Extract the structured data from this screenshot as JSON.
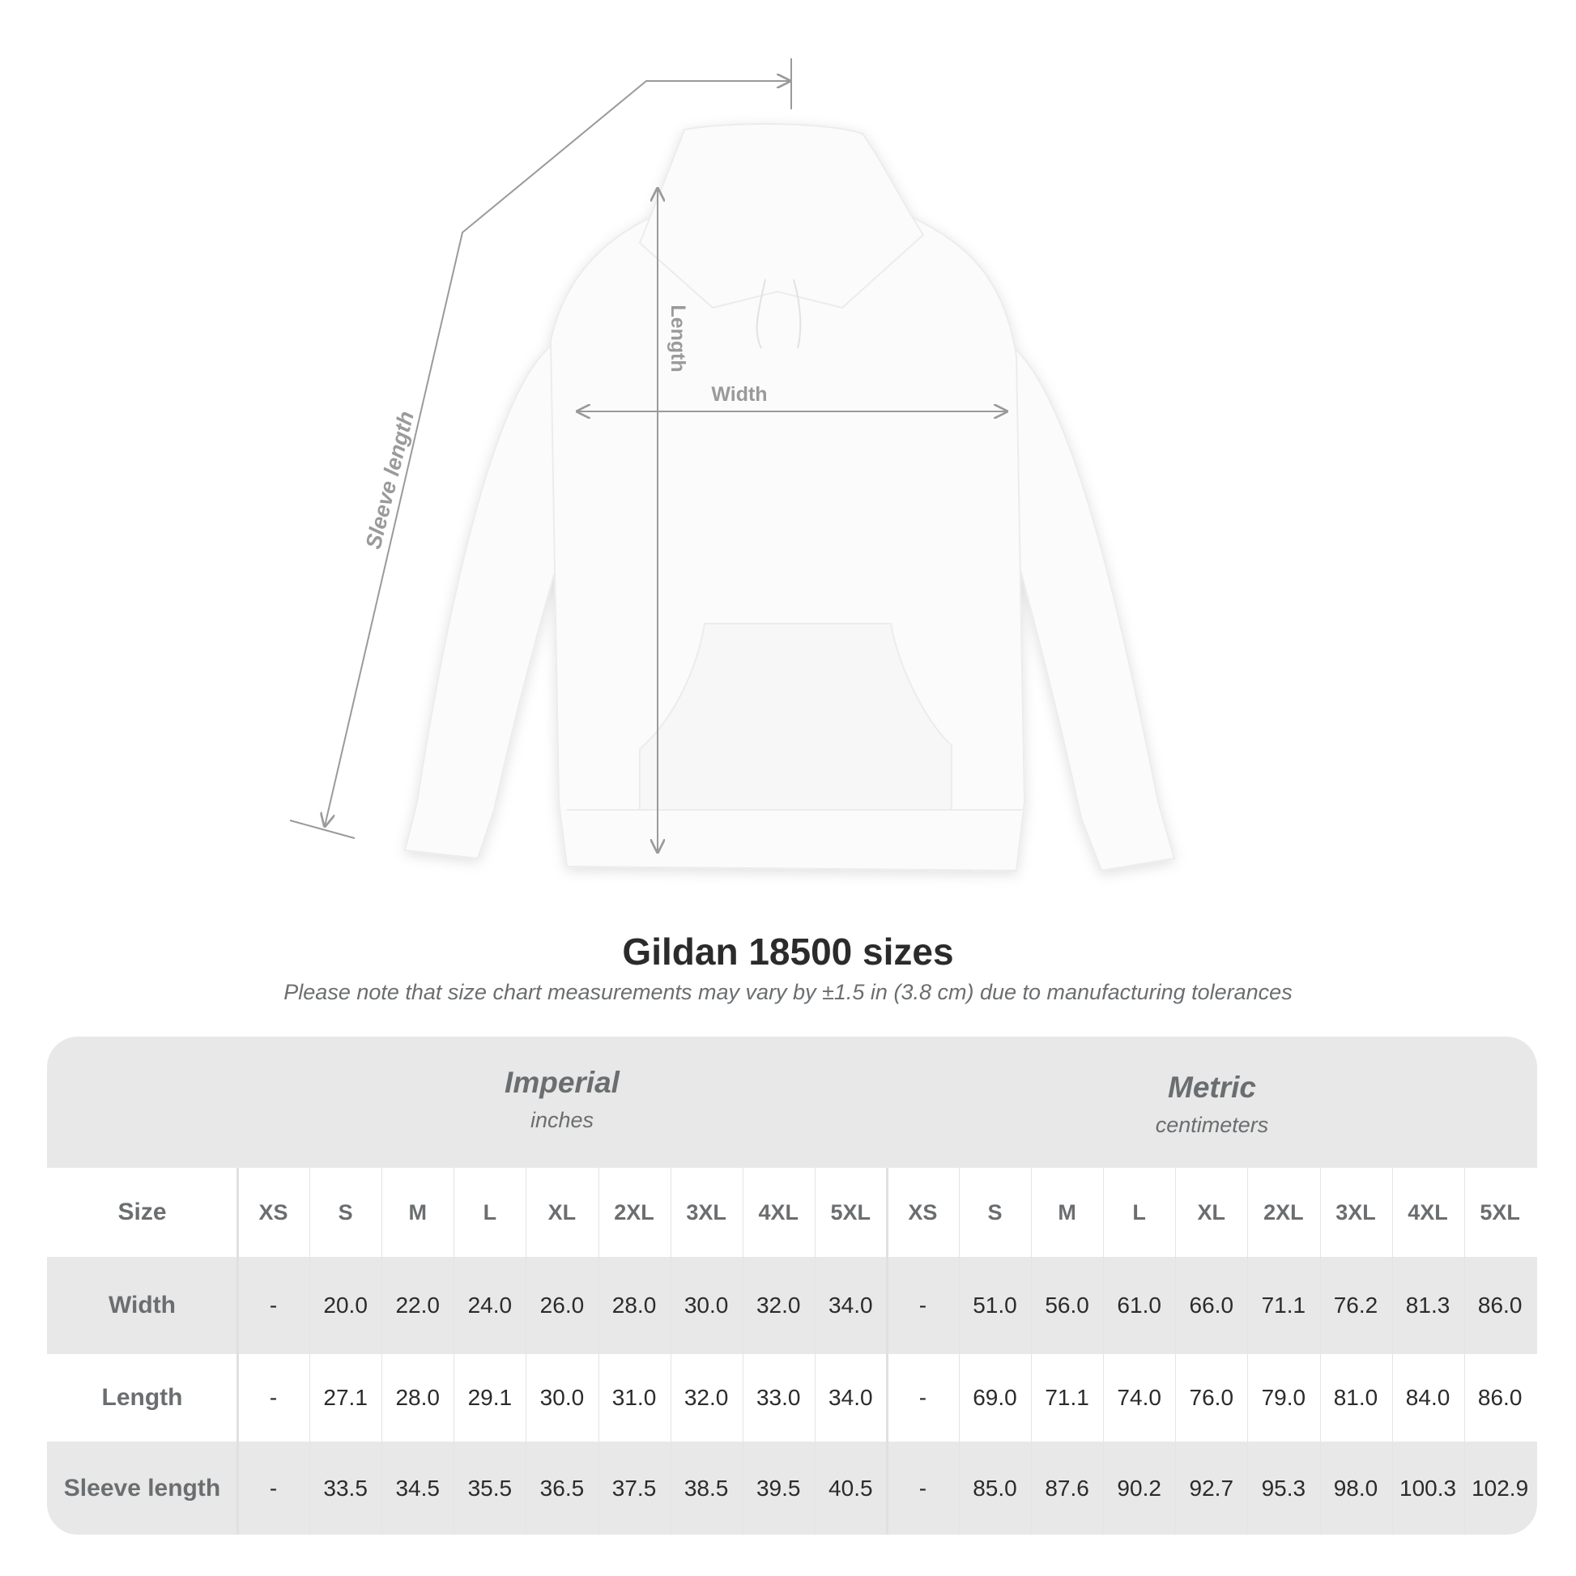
{
  "diagram": {
    "labels": {
      "length": "Length",
      "width": "Width",
      "sleeve": "Sleeve length"
    },
    "line_color": "#9a9a9a"
  },
  "title": "Gildan 18500 sizes",
  "subtitle": "Please note that size chart measurements may vary by ±1.5 in (3.8 cm) due to manufacturing tolerances",
  "table": {
    "imperial": {
      "title": "Imperial",
      "unit": "inches"
    },
    "metric": {
      "title": "Metric",
      "unit": "centimeters"
    },
    "size_label": "Size",
    "sizes": [
      "XS",
      "S",
      "M",
      "L",
      "XL",
      "2XL",
      "3XL",
      "4XL",
      "5XL"
    ],
    "rows": [
      {
        "label": "Width",
        "imperial": [
          "-",
          "20.0",
          "22.0",
          "24.0",
          "26.0",
          "28.0",
          "30.0",
          "32.0",
          "34.0"
        ],
        "metric": [
          "-",
          "51.0",
          "56.0",
          "61.0",
          "66.0",
          "71.1",
          "76.2",
          "81.3",
          "86.0"
        ]
      },
      {
        "label": "Length",
        "imperial": [
          "-",
          "27.1",
          "28.0",
          "29.1",
          "30.0",
          "31.0",
          "32.0",
          "33.0",
          "34.0"
        ],
        "metric": [
          "-",
          "69.0",
          "71.1",
          "74.0",
          "76.0",
          "79.0",
          "81.0",
          "84.0",
          "86.0"
        ]
      },
      {
        "label": "Sleeve length",
        "imperial": [
          "-",
          "33.5",
          "34.5",
          "35.5",
          "36.5",
          "37.5",
          "38.5",
          "39.5",
          "40.5"
        ],
        "metric": [
          "-",
          "85.0",
          "87.6",
          "90.2",
          "92.7",
          "95.3",
          "98.0",
          "100.3",
          "102.9"
        ]
      }
    ],
    "band_color": "#e8e8e8",
    "label_color": "#6b6e70"
  }
}
